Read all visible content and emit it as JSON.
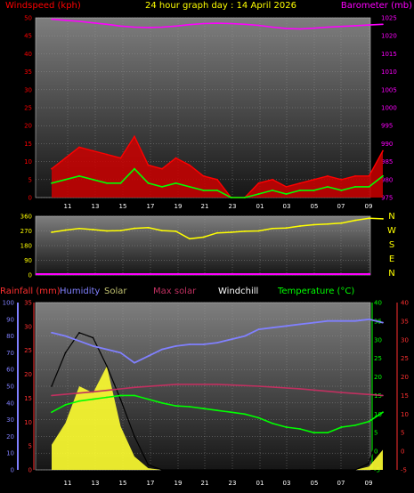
{
  "chart_data": [
    {
      "type": "line",
      "title": "24 hour graph day : 14 April 2026",
      "left_axis_label": "Windspeed (kph)",
      "right_axis_label": "Barometer (mb)",
      "x_ticks": [
        "11",
        "13",
        "15",
        "17",
        "19",
        "21",
        "23",
        "01",
        "03",
        "05",
        "07",
        "09"
      ],
      "left_ticks": [
        "0",
        "5",
        "10",
        "15",
        "20",
        "25",
        "30",
        "35",
        "40",
        "45",
        "50"
      ],
      "right_ticks": [
        "975",
        "980",
        "985",
        "990",
        "995",
        "1000",
        "1005",
        "1010",
        "1015",
        "1020",
        "1025"
      ],
      "left_ylim": [
        0,
        50
      ],
      "right_ylim": [
        975,
        1025
      ],
      "colors": {
        "gust": "#ff0000",
        "average": "#00ff00",
        "barometer": "#ff00ff",
        "title": "#ffff00"
      },
      "series": [
        {
          "key": "barometer",
          "axis": "right",
          "x": [
            0,
            1,
            2,
            3,
            4,
            5,
            6,
            7,
            8,
            9,
            10,
            11,
            12,
            13,
            14,
            15,
            16,
            17,
            18,
            19,
            20,
            21,
            22,
            23,
            24
          ],
          "values": [
            1024.6,
            1024.3,
            1024.0,
            1023.6,
            1023.2,
            1022.7,
            1022.4,
            1022.3,
            1022.4,
            1022.7,
            1023.1,
            1023.4,
            1023.5,
            1023.4,
            1023.2,
            1022.9,
            1022.4,
            1022.0,
            1021.9,
            1022.1,
            1022.4,
            1022.6,
            1022.8,
            1023.0,
            1023.2
          ]
        },
        {
          "key": "gust",
          "axis": "left",
          "x": [
            0,
            1,
            2,
            3,
            4,
            5,
            6,
            7,
            8,
            9,
            10,
            11,
            12,
            13,
            14,
            15,
            16,
            17,
            18,
            19,
            20,
            21,
            22,
            23,
            24
          ],
          "values": [
            8,
            11,
            14,
            13,
            12,
            11,
            17,
            9,
            8,
            11,
            9,
            6,
            5,
            0,
            0,
            4,
            5,
            3,
            4,
            5,
            6,
            5,
            6,
            6,
            13
          ]
        },
        {
          "key": "average",
          "axis": "left",
          "x": [
            0,
            1,
            2,
            3,
            4,
            5,
            6,
            7,
            8,
            9,
            10,
            11,
            12,
            13,
            14,
            15,
            16,
            17,
            18,
            19,
            20,
            21,
            22,
            23,
            24
          ],
          "values": [
            4,
            5,
            6,
            5,
            4,
            4,
            8,
            4,
            3,
            4,
            3,
            2,
            2,
            0,
            0,
            1,
            2,
            1,
            2,
            2,
            3,
            2,
            3,
            3,
            6
          ]
        }
      ]
    },
    {
      "type": "line",
      "left_ticks": [
        "0",
        "90",
        "180",
        "270",
        "360"
      ],
      "right_labels": [
        "N",
        "W",
        "S",
        "E",
        "N"
      ],
      "ylim": [
        0,
        360
      ],
      "colors": {
        "direction": "#ffff00",
        "base": "#ff00ff"
      },
      "series": [
        {
          "key": "direction",
          "x": [
            0,
            1,
            2,
            3,
            4,
            5,
            6,
            7,
            8,
            9,
            10,
            11,
            12,
            13,
            14,
            15,
            16,
            17,
            18,
            19,
            20,
            21,
            22,
            23,
            24
          ],
          "values": [
            262,
            275,
            285,
            278,
            270,
            272,
            286,
            290,
            272,
            268,
            222,
            232,
            258,
            262,
            268,
            270,
            285,
            288,
            300,
            308,
            312,
            318,
            335,
            348,
            344
          ]
        }
      ]
    },
    {
      "type": "line",
      "legend": [
        "Rainfall (mm)",
        "Humidity",
        "Solar",
        "Max solar",
        "Windchill",
        "Temperature (°C)"
      ],
      "legend_colors": [
        "#ff3030",
        "#8080ff",
        "#c0c070",
        "#c03060",
        "#ffffff",
        "#00ff00"
      ],
      "x_ticks": [
        "11",
        "13",
        "15",
        "17",
        "19",
        "21",
        "23",
        "01",
        "03",
        "05",
        "07",
        "09"
      ],
      "humidity_ticks": [
        "0",
        "10",
        "20",
        "30",
        "40",
        "50",
        "60",
        "70",
        "80",
        "90",
        "100"
      ],
      "rain_ticks": [
        "0",
        "5",
        "10",
        "15",
        "20",
        "25",
        "30",
        "35"
      ],
      "temp_ticks": [
        "-5",
        "0",
        "5",
        "10",
        "15",
        "20",
        "25",
        "30",
        "35",
        "40"
      ],
      "humidity_ylim": [
        0,
        100
      ],
      "temp_ylim": [
        -5,
        40
      ],
      "solar_scale": [
        0,
        1000
      ],
      "series": [
        {
          "key": "humidity",
          "axis": "humidity",
          "x": [
            0,
            1,
            2,
            3,
            4,
            5,
            6,
            7,
            8,
            9,
            10,
            11,
            12,
            13,
            14,
            15,
            16,
            17,
            18,
            19,
            20,
            21,
            22,
            23,
            24
          ],
          "values": [
            82,
            80,
            77,
            74,
            72,
            70,
            64,
            68,
            72,
            74,
            75,
            75,
            76,
            78,
            80,
            84,
            85,
            86,
            87,
            88,
            89,
            89,
            89,
            90,
            88
          ]
        },
        {
          "key": "max_solar",
          "axis": "temp",
          "x": [
            0,
            3,
            6,
            9,
            12,
            15,
            18,
            21,
            24
          ],
          "values": [
            15.0,
            16.0,
            17.2,
            18.0,
            18.0,
            17.5,
            16.8,
            15.8,
            15.0
          ]
        },
        {
          "key": "temperature",
          "axis": "temp",
          "x": [
            0,
            1,
            2,
            3,
            4,
            5,
            6,
            7,
            8,
            9,
            10,
            11,
            12,
            13,
            14,
            15,
            16,
            17,
            18,
            19,
            20,
            21,
            22,
            23,
            24
          ],
          "values": [
            10.5,
            12.5,
            13.5,
            14.0,
            14.5,
            15.0,
            15.0,
            14.0,
            13.0,
            12.2,
            12.0,
            11.5,
            11.0,
            10.5,
            10.0,
            9.0,
            7.5,
            6.5,
            6.0,
            5.0,
            5.0,
            6.5,
            7.0,
            8.0,
            10.5
          ]
        },
        {
          "key": "max_solar_curve",
          "axis": "solar",
          "x": [
            0,
            1,
            2,
            3,
            4,
            5,
            6,
            7,
            8,
            9,
            10,
            11,
            12,
            13,
            14,
            15,
            16,
            17,
            18,
            19,
            20,
            21,
            22,
            23,
            24
          ],
          "values": [
            500,
            700,
            820,
            790,
            620,
            420,
            200,
            30,
            0,
            0,
            0,
            0,
            0,
            0,
            0,
            0,
            0,
            0,
            0,
            0,
            0,
            0,
            0,
            40,
            310
          ]
        },
        {
          "key": "solar",
          "axis": "solar",
          "x": [
            0,
            1,
            2,
            3,
            4,
            5,
            6,
            7,
            8,
            9,
            10,
            11,
            12,
            13,
            14,
            15,
            16,
            17,
            18,
            19,
            20,
            21,
            22,
            23,
            24
          ],
          "values": [
            150,
            280,
            500,
            460,
            620,
            260,
            80,
            10,
            0,
            0,
            0,
            0,
            0,
            0,
            0,
            0,
            0,
            0,
            0,
            0,
            0,
            0,
            0,
            20,
            120
          ]
        }
      ]
    }
  ]
}
